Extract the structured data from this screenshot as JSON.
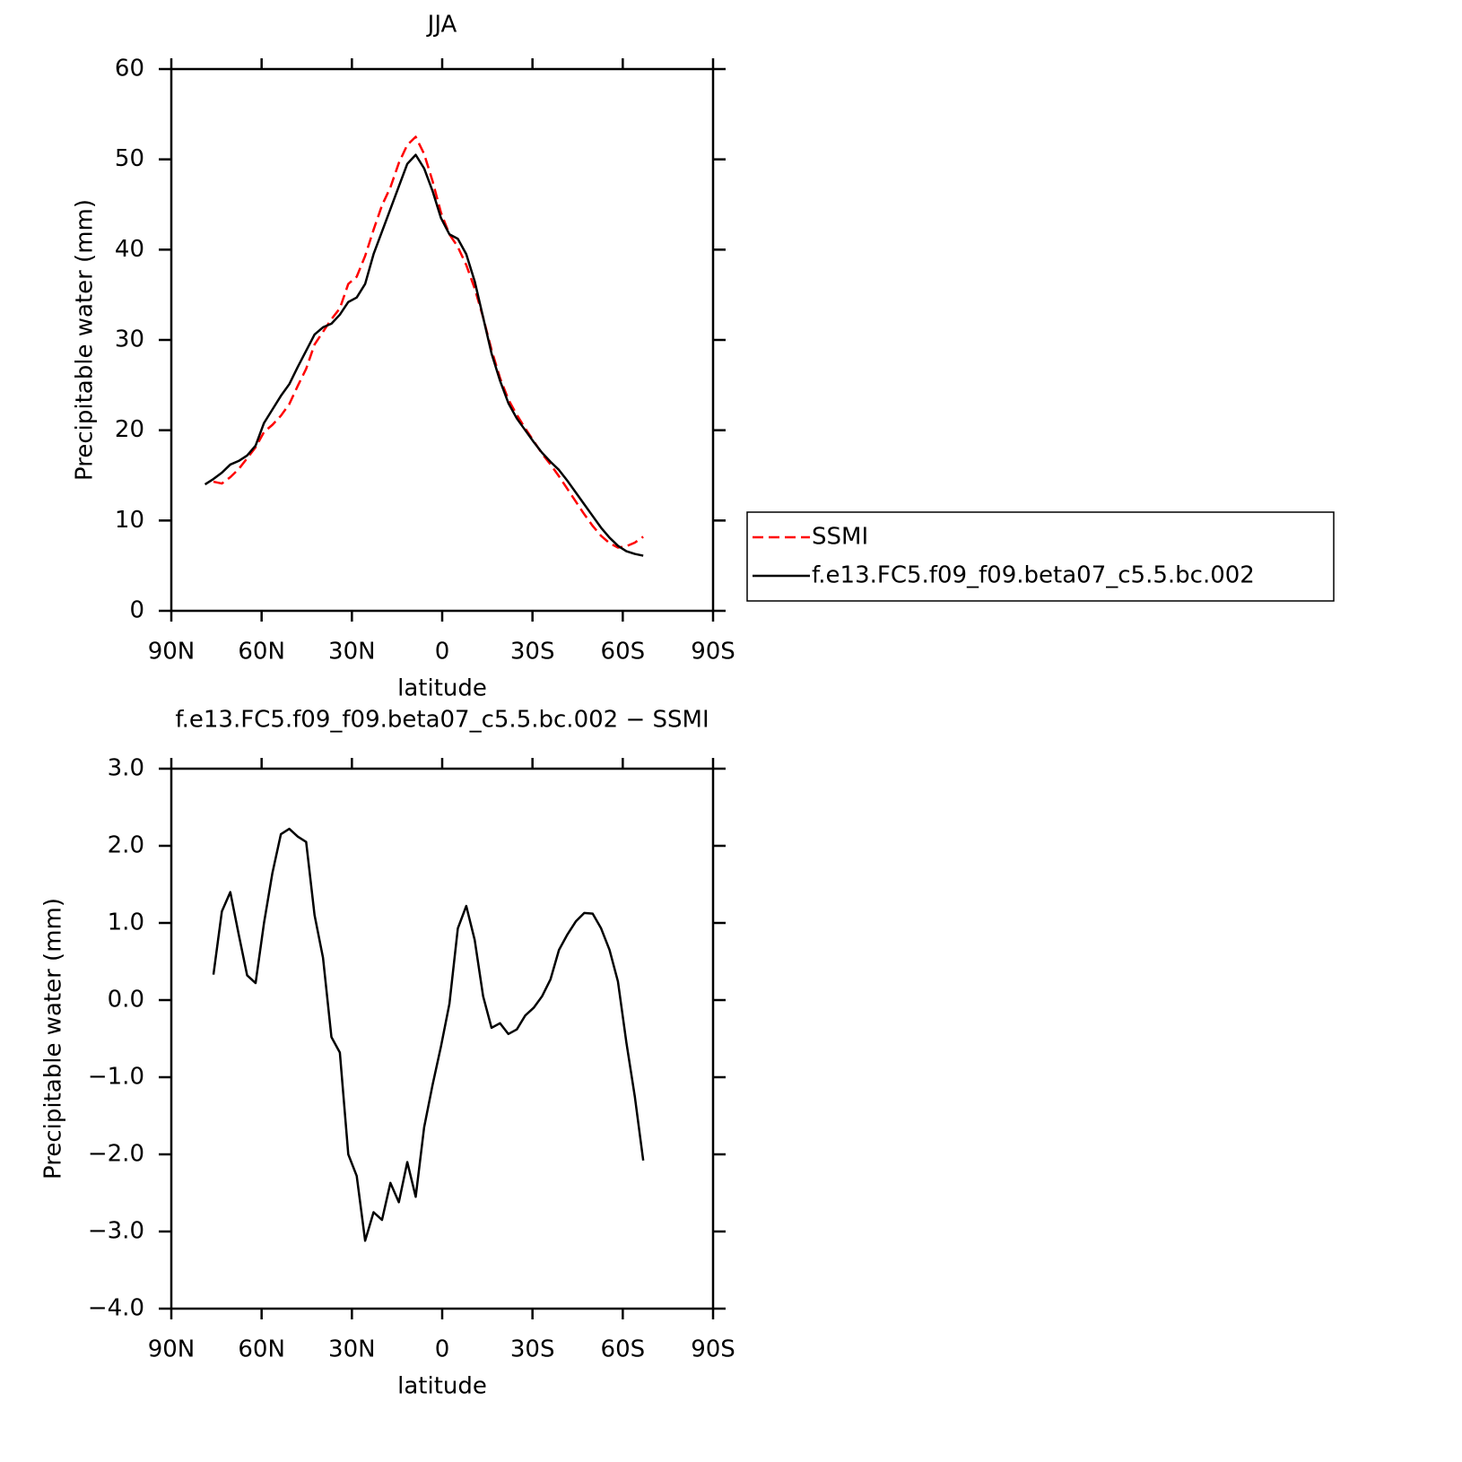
{
  "chart_data": [
    {
      "type": "line",
      "title": "JJA",
      "xlabel": "latitude",
      "ylabel": "Precipitable water (mm)",
      "xlim": [
        90,
        -90
      ],
      "xticks": [
        {
          "value": 90,
          "label": "90N"
        },
        {
          "value": 60,
          "label": "60N"
        },
        {
          "value": 30,
          "label": "30N"
        },
        0,
        {
          "value": -30,
          "label": "30S"
        },
        {
          "value": -60,
          "label": "60S"
        },
        {
          "value": -90,
          "label": "90S"
        }
      ],
      "ylim": [
        0,
        60
      ],
      "yticks": [
        0,
        10,
        20,
        30,
        40,
        50,
        60
      ],
      "legend": true,
      "x": [
        78.8,
        76,
        73.2,
        70.4,
        67.6,
        64.8,
        62,
        59.2,
        56.4,
        53.6,
        50.8,
        48,
        45.2,
        42.4,
        39.6,
        36.8,
        34,
        31.2,
        28.4,
        25.6,
        22.8,
        20,
        17.2,
        14.4,
        11.6,
        8.8,
        6,
        3.2,
        0.4,
        -2.4,
        -5.2,
        -8,
        -10.8,
        -13.6,
        -16.4,
        -19.2,
        -22,
        -24.8,
        -27.6,
        -30.4,
        -33.2,
        -36,
        -38.8,
        -41.6,
        -44.4,
        -47.2,
        -50,
        -52.8,
        -55.6,
        -58.4,
        -61.2,
        -64,
        -66.8
      ],
      "series": [
        {
          "name": "SSMI",
          "color": "#ff0000",
          "dashed": true,
          "values": [
            null,
            14.3,
            14.1,
            14.8,
            15.7,
            16.9,
            18.1,
            19.8,
            20.6,
            21.6,
            22.9,
            24.9,
            26.8,
            29.5,
            30.9,
            32.3,
            33.5,
            36.2,
            37.0,
            39.3,
            42.2,
            44.9,
            46.9,
            49.6,
            51.6,
            52.5,
            50.6,
            47.6,
            44.1,
            41.7,
            40.3,
            38.3,
            35.7,
            32.5,
            28.9,
            25.8,
            23.4,
            21.7,
            20.2,
            18.8,
            17.4,
            16.2,
            14.9,
            13.5,
            12.1,
            10.7,
            9.4,
            8.3,
            7.5,
            7.0,
            7.15,
            7.55,
            8.2
          ]
        },
        {
          "name": "f.e13.FC5.f09_f09.beta07_c5.5.bc.002",
          "color": "#000000",
          "dashed": false,
          "values": [
            14.0,
            14.6,
            15.3,
            16.2,
            16.6,
            17.2,
            18.3,
            20.8,
            22.3,
            23.8,
            25.1,
            27.0,
            28.8,
            30.6,
            31.4,
            31.8,
            32.8,
            34.2,
            34.7,
            36.2,
            39.5,
            42.0,
            44.5,
            47.0,
            49.5,
            50.5,
            49.0,
            46.5,
            43.5,
            41.7,
            41.2,
            39.5,
            36.5,
            32.5,
            28.5,
            25.5,
            23.0,
            21.3,
            20.0,
            18.7,
            17.5,
            16.5,
            15.6,
            14.4,
            13.1,
            11.8,
            10.5,
            9.2,
            8.1,
            7.2,
            6.6,
            6.3,
            6.1
          ]
        }
      ]
    },
    {
      "type": "line",
      "title": "f.e13.FC5.f09_f09.beta07_c5.5.bc.002 − SSMI",
      "xlabel": "latitude",
      "ylabel": "Precipitable water (mm)",
      "xlim": [
        90,
        -90
      ],
      "xticks": [
        {
          "value": 90,
          "label": "90N"
        },
        {
          "value": 60,
          "label": "60N"
        },
        {
          "value": 30,
          "label": "30N"
        },
        0,
        {
          "value": -30,
          "label": "30S"
        },
        {
          "value": -60,
          "label": "60S"
        },
        {
          "value": -90,
          "label": "90S"
        }
      ],
      "ylim": [
        -4,
        3
      ],
      "yticks": [
        {
          "value": -4,
          "label": "−4.0"
        },
        {
          "value": -3,
          "label": "−3.0"
        },
        {
          "value": -2,
          "label": "−2.0"
        },
        {
          "value": -1,
          "label": "−1.0"
        },
        {
          "value": 0,
          "label": "0.0"
        },
        {
          "value": 1,
          "label": "1.0"
        },
        {
          "value": 2,
          "label": "2.0"
        },
        {
          "value": 3,
          "label": "3.0"
        }
      ],
      "legend": false,
      "x": [
        76,
        73.2,
        70.4,
        67.6,
        64.8,
        62,
        59.2,
        56.4,
        53.6,
        50.8,
        48,
        45.2,
        42.4,
        39.6,
        36.8,
        34,
        31.2,
        28.4,
        25.6,
        22.8,
        20,
        17.2,
        14.4,
        11.6,
        8.8,
        6,
        3.2,
        0.4,
        -2.4,
        -5.2,
        -8,
        -10.8,
        -13.6,
        -16.4,
        -19.2,
        -22,
        -24.8,
        -27.6,
        -30.4,
        -33.2,
        -36,
        -38.8,
        -41.6,
        -44.4,
        -47.2,
        -50,
        -52.8,
        -55.6,
        -58.4,
        -61.2,
        -64,
        -66.8
      ],
      "series": [
        {
          "color": "#000000",
          "dashed": false,
          "values": [
            0.33,
            1.15,
            1.4,
            0.85,
            0.32,
            0.22,
            1.0,
            1.65,
            2.15,
            2.22,
            2.12,
            2.05,
            1.1,
            0.55,
            -0.48,
            -0.68,
            -2.0,
            -2.28,
            -3.12,
            -2.75,
            -2.85,
            -2.37,
            -2.62,
            -2.1,
            -2.55,
            -1.65,
            -1.1,
            -0.6,
            -0.05,
            0.93,
            1.22,
            0.78,
            0.05,
            -0.36,
            -0.3,
            -0.44,
            -0.38,
            -0.2,
            -0.1,
            0.05,
            0.27,
            0.65,
            0.85,
            1.02,
            1.13,
            1.12,
            0.93,
            0.65,
            0.24,
            -0.55,
            -1.25,
            -2.08
          ]
        }
      ]
    }
  ]
}
